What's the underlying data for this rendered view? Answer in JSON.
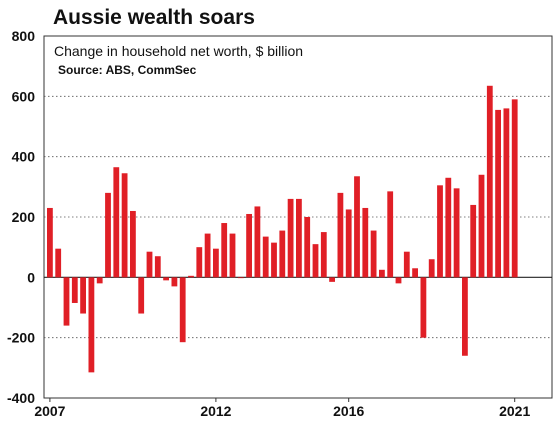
{
  "chart_data": {
    "type": "bar",
    "title": "Aussie wealth soars",
    "subtitle": "Change in household net worth, $ billion",
    "source": "Source: ABS, CommSec",
    "xlabel": "",
    "ylabel": "",
    "ylim": [
      -400,
      800
    ],
    "yticks": [
      800,
      600,
      400,
      200,
      0,
      -200,
      -400
    ],
    "xticks": [
      {
        "label": "2007",
        "index": 0
      },
      {
        "label": "2012",
        "index": 20
      },
      {
        "label": "2016",
        "index": 36
      },
      {
        "label": "2021",
        "index": 56
      }
    ],
    "bar_color": "#e01f26",
    "grid": true,
    "series": [
      {
        "values": [
          230,
          95,
          -160,
          -85,
          -120,
          -315,
          -20,
          280,
          365,
          345,
          220,
          -120,
          85,
          70,
          -10,
          -30,
          -215,
          5,
          100,
          145,
          95,
          180,
          145,
          0,
          210,
          235,
          135,
          115,
          155,
          260,
          260,
          200,
          110,
          150,
          -15,
          280,
          225,
          335,
          230,
          155,
          25,
          285,
          -20,
          85,
          30,
          -200,
          60,
          305,
          330,
          295,
          -260,
          240,
          340,
          635,
          555,
          560,
          590
        ]
      }
    ]
  }
}
